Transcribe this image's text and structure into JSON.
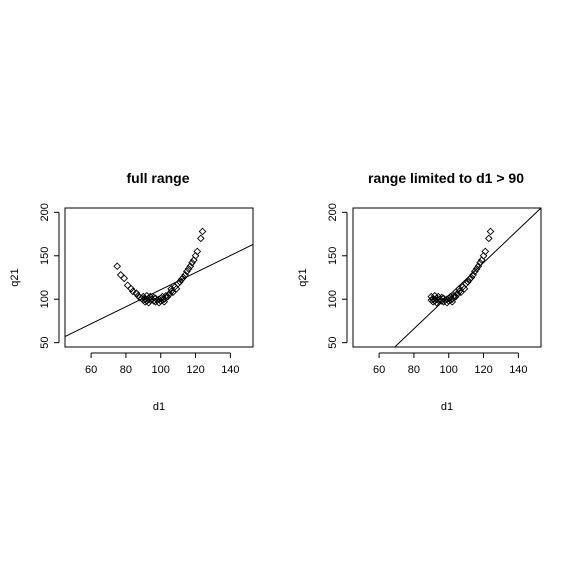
{
  "chart_data": [
    {
      "type": "scatter",
      "title": "full range",
      "xlabel": "d1",
      "ylabel": "q21",
      "xlim": [
        45,
        153
      ],
      "ylim": [
        45,
        205
      ],
      "xticks": [
        60,
        80,
        100,
        120,
        140
      ],
      "yticks": [
        50,
        100,
        150,
        200
      ],
      "grid": false,
      "marker": "open-diamond",
      "points": [
        [
          75,
          138
        ],
        [
          77,
          128
        ],
        [
          79,
          124
        ],
        [
          81,
          116
        ],
        [
          83,
          112
        ],
        [
          84,
          109
        ],
        [
          86,
          107
        ],
        [
          87,
          104
        ],
        [
          88,
          102
        ],
        [
          89,
          101
        ],
        [
          90,
          99
        ],
        [
          90,
          103
        ],
        [
          91,
          100
        ],
        [
          91,
          97
        ],
        [
          92,
          98
        ],
        [
          92,
          104
        ],
        [
          93,
          101
        ],
        [
          93,
          96
        ],
        [
          94,
          99
        ],
        [
          95,
          100
        ],
        [
          96,
          98
        ],
        [
          96,
          102
        ],
        [
          97,
          97
        ],
        [
          97,
          101
        ],
        [
          98,
          99
        ],
        [
          99,
          100
        ],
        [
          99,
          96
        ],
        [
          100,
          101
        ],
        [
          100,
          98
        ],
        [
          101,
          103
        ],
        [
          101,
          99
        ],
        [
          102,
          100
        ],
        [
          103,
          104
        ],
        [
          103,
          102
        ],
        [
          104,
          103
        ],
        [
          105,
          106
        ],
        [
          106,
          109
        ],
        [
          106,
          112
        ],
        [
          107,
          108
        ],
        [
          108,
          114
        ],
        [
          109,
          112
        ],
        [
          110,
          118
        ],
        [
          111,
          120
        ],
        [
          112,
          123
        ],
        [
          113,
          125
        ],
        [
          114,
          128
        ],
        [
          115,
          132
        ],
        [
          116,
          135
        ],
        [
          117,
          138
        ],
        [
          118,
          142
        ],
        [
          119,
          145
        ],
        [
          120,
          150
        ],
        [
          121,
          155
        ],
        [
          123,
          170
        ],
        [
          124,
          178
        ],
        [
          102,
          97
        ],
        [
          94,
          103
        ]
      ],
      "line": {
        "x": [
          45,
          153
        ],
        "y": [
          57,
          163
        ]
      }
    },
    {
      "type": "scatter",
      "title": "range limited to d1 > 90",
      "xlabel": "d1",
      "ylabel": "q21",
      "xlim": [
        45,
        153
      ],
      "ylim": [
        45,
        205
      ],
      "xticks": [
        60,
        80,
        100,
        120,
        140
      ],
      "yticks": [
        50,
        100,
        150,
        200
      ],
      "grid": false,
      "marker": "open-diamond",
      "points": [
        [
          90,
          99
        ],
        [
          90,
          103
        ],
        [
          91,
          100
        ],
        [
          91,
          97
        ],
        [
          92,
          98
        ],
        [
          92,
          104
        ],
        [
          93,
          101
        ],
        [
          93,
          96
        ],
        [
          94,
          99
        ],
        [
          95,
          100
        ],
        [
          96,
          98
        ],
        [
          96,
          102
        ],
        [
          97,
          97
        ],
        [
          97,
          101
        ],
        [
          98,
          99
        ],
        [
          99,
          100
        ],
        [
          99,
          96
        ],
        [
          100,
          101
        ],
        [
          100,
          98
        ],
        [
          101,
          103
        ],
        [
          101,
          99
        ],
        [
          102,
          100
        ],
        [
          103,
          104
        ],
        [
          103,
          102
        ],
        [
          104,
          103
        ],
        [
          105,
          106
        ],
        [
          106,
          109
        ],
        [
          106,
          112
        ],
        [
          107,
          108
        ],
        [
          108,
          114
        ],
        [
          109,
          112
        ],
        [
          110,
          118
        ],
        [
          111,
          120
        ],
        [
          112,
          123
        ],
        [
          113,
          125
        ],
        [
          114,
          128
        ],
        [
          115,
          132
        ],
        [
          116,
          135
        ],
        [
          117,
          138
        ],
        [
          118,
          142
        ],
        [
          119,
          145
        ],
        [
          120,
          150
        ],
        [
          121,
          155
        ],
        [
          123,
          170
        ],
        [
          124,
          178
        ],
        [
          102,
          97
        ],
        [
          94,
          103
        ]
      ],
      "line": {
        "x": [
          69,
          153
        ],
        "y": [
          45,
          205
        ]
      }
    }
  ]
}
